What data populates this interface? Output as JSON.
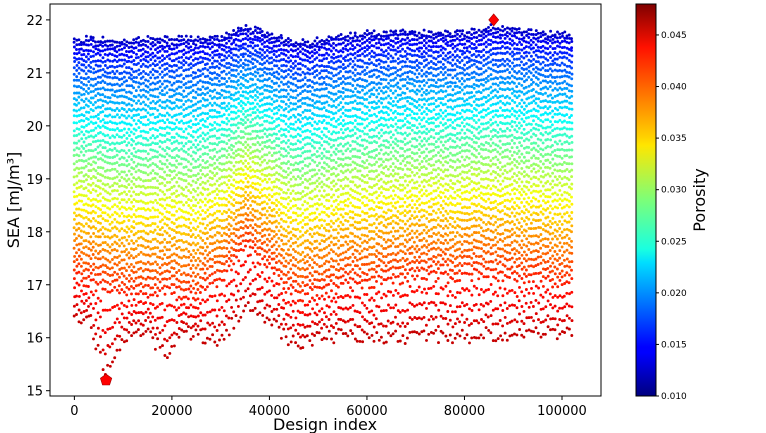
{
  "chart_data": {
    "type": "scatter",
    "title": "",
    "xlabel": "Design index",
    "ylabel": "SEA [mJ/m³]",
    "xlim": [
      -5000,
      108000
    ],
    "ylim": [
      14.9,
      22.3
    ],
    "xticks": [
      0,
      20000,
      40000,
      60000,
      80000,
      100000
    ],
    "xtick_labels": [
      "0",
      "20000",
      "40000",
      "60000",
      "80000",
      "100000"
    ],
    "yticks": [
      15,
      16,
      17,
      18,
      19,
      20,
      21,
      22
    ],
    "ytick_labels": [
      "15",
      "16",
      "17",
      "18",
      "19",
      "20",
      "21",
      "22"
    ],
    "grid": false,
    "colorbar": {
      "label": "Porosity",
      "colormap": "jet",
      "range": [
        0.01,
        0.048
      ],
      "ticks": [
        0.01,
        0.015,
        0.02,
        0.025,
        0.03,
        0.035,
        0.04,
        0.045
      ],
      "tick_labels": [
        "0.010",
        "0.015",
        "0.020",
        "0.025",
        "0.030",
        "0.035",
        "0.040",
        "0.045"
      ]
    },
    "series": [
      {
        "marker": "dot",
        "color_by": "porosity",
        "x_range": [
          0,
          102000
        ],
        "upper_boundary": [
          [
            0,
            21.7
          ],
          [
            10000,
            21.65
          ],
          [
            20000,
            21.7
          ],
          [
            30000,
            21.7
          ],
          [
            35000,
            21.9
          ],
          [
            40000,
            21.8
          ],
          [
            46000,
            21.6
          ],
          [
            60000,
            21.8
          ],
          [
            80000,
            21.8
          ],
          [
            86000,
            21.9
          ],
          [
            102000,
            21.75
          ]
        ],
        "lower_boundary": [
          [
            0,
            16.3
          ],
          [
            3000,
            16.2
          ],
          [
            6500,
            15.2
          ],
          [
            10000,
            15.9
          ],
          [
            15000,
            16.0
          ],
          [
            19000,
            15.5
          ],
          [
            22000,
            16.0
          ],
          [
            30000,
            15.8
          ],
          [
            35000,
            16.5
          ],
          [
            40000,
            16.2
          ],
          [
            46000,
            15.7
          ],
          [
            50000,
            15.9
          ],
          [
            60000,
            15.9
          ],
          [
            80000,
            15.9
          ],
          [
            100000,
            16.0
          ],
          [
            102000,
            16.0
          ]
        ],
        "high_porosity_boundary": [
          [
            0,
            17.2
          ],
          [
            5000,
            17.0
          ],
          [
            10000,
            16.9
          ],
          [
            20000,
            16.9
          ],
          [
            25000,
            16.8
          ],
          [
            30000,
            17.1
          ],
          [
            35000,
            17.8
          ],
          [
            40000,
            17.3
          ],
          [
            46000,
            16.8
          ],
          [
            55000,
            17.0
          ],
          [
            70000,
            17.2
          ],
          [
            85000,
            17.2
          ],
          [
            100000,
            17.1
          ],
          [
            102000,
            17.1
          ]
        ]
      }
    ],
    "highlighted_points": [
      {
        "name": "min",
        "x": 6500,
        "y": 15.2,
        "marker": "pentagon",
        "color": "#ff0000"
      },
      {
        "name": "max",
        "x": 86000,
        "y": 22.0,
        "marker": "diamond",
        "color": "#ff0000"
      }
    ]
  }
}
